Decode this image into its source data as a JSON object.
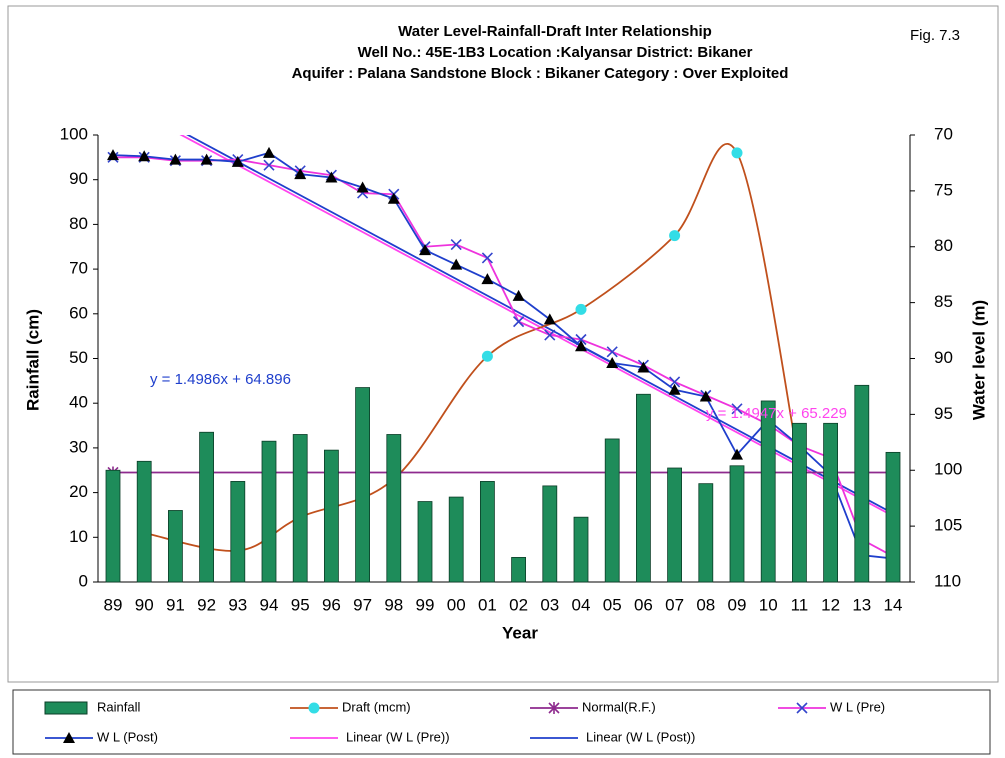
{
  "chart_data": {
    "type": "combo",
    "title": "Water Level-Rainfall-Draft Inter Relationship",
    "subtitle": [
      "Well No.: 45E-1B3   Location :Kalyansar   District: Bikaner",
      "Aquifer : Palana Sandstone   Block : Bikaner   Category : Over Exploited"
    ],
    "figure_label": "Fig. 7.3",
    "x_label": "Year",
    "y_label": "Rainfall (cm)",
    "y2_label": "Water level (m)",
    "categories": [
      "89",
      "90",
      "91",
      "92",
      "93",
      "94",
      "95",
      "96",
      "97",
      "98",
      "99",
      "00",
      "01",
      "02",
      "03",
      "04",
      "05",
      "06",
      "07",
      "08",
      "09",
      "10",
      "11",
      "12",
      "13",
      "14"
    ],
    "ylim": [
      0,
      100
    ],
    "yticks": [
      0,
      10,
      20,
      30,
      40,
      50,
      60,
      70,
      80,
      90,
      100
    ],
    "y2lim": [
      70,
      110
    ],
    "y2_inverted": true,
    "y2ticks": [
      70,
      75,
      80,
      85,
      90,
      95,
      100,
      105,
      110
    ],
    "series": [
      {
        "name": "Rainfall",
        "type": "bar",
        "color": "#1e8c5a",
        "values": [
          25,
          27,
          16,
          33.5,
          22.5,
          31.5,
          33,
          29.5,
          43.5,
          33,
          18,
          19,
          22.5,
          5.5,
          21.5,
          14.5,
          32,
          42,
          25.5,
          22,
          26,
          40.5,
          35.5,
          35.5,
          44,
          29
        ]
      },
      {
        "name": "Draft (mcm)",
        "type": "line",
        "smooth": true,
        "color": "#c0501c",
        "marker": "circle",
        "marker_color": "#33dde6",
        "x": [
          "90",
          "93",
          "95",
          "98",
          "01",
          "04",
          "07",
          "09",
          "11"
        ],
        "values": [
          11,
          7,
          14.5,
          23,
          50.5,
          61,
          77.5,
          96,
          26
        ]
      },
      {
        "name": "Normal(R.F.)",
        "type": "line",
        "color": "#8e2a8e",
        "marker": "star",
        "marker_color": "#8e2a8e",
        "x": [
          "89",
          "14"
        ],
        "values": [
          24.5,
          24.5
        ]
      },
      {
        "name": "W L (Pre)",
        "type": "line",
        "axis": "y2",
        "color": "#ee33dd",
        "marker": "cross",
        "marker_color": "#3344cc",
        "values": [
          72.0,
          72.0,
          72.3,
          72.3,
          72.2,
          72.7,
          73.2,
          73.6,
          75.2,
          75.3,
          80.0,
          79.8,
          81.0,
          86.7,
          87.9,
          88.3,
          89.4,
          90.6,
          92.1,
          93.3,
          94.5,
          95.9,
          97.8,
          98.9,
          106.2,
          107.7
        ]
      },
      {
        "name": "W L (Post)",
        "type": "line",
        "axis": "y2",
        "color": "#1f3fcc",
        "marker": "triangle",
        "marker_color": "#000000",
        "values": [
          71.8,
          71.9,
          72.2,
          72.2,
          72.4,
          71.6,
          73.5,
          73.8,
          74.7,
          75.7,
          80.3,
          81.6,
          82.9,
          84.4,
          86.5,
          88.9,
          90.4,
          90.8,
          92.8,
          93.4,
          98.6,
          95.5,
          97.8,
          100.4,
          107.6,
          107.9
        ]
      }
    ],
    "trendlines": [
      {
        "name": "Linear (W L (Pre))",
        "color": "#ff44ee",
        "axis": "y2",
        "slope": 1.4947,
        "intercept": 65.229,
        "label": "y = 1.4947x + 65.229"
      },
      {
        "name": "Linear (W L (Post))",
        "color": "#1f3fcc",
        "axis": "y2",
        "slope": 1.4986,
        "intercept": 64.896,
        "label": "y = 1.4986x + 64.896"
      }
    ]
  }
}
